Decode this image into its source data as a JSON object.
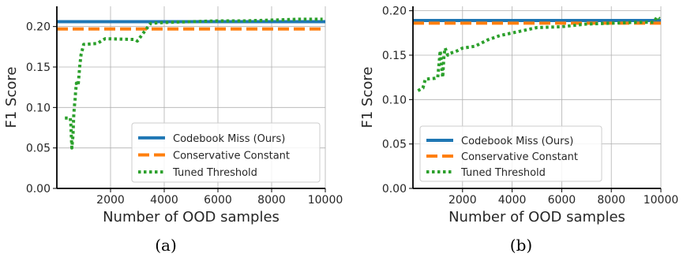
{
  "chart_data": [
    {
      "type": "line",
      "caption": "(a)",
      "xlabel": "Number of OOD samples",
      "ylabel": "F1 Score",
      "xlim": [
        0,
        10000
      ],
      "ylim": [
        0,
        0.225
      ],
      "xticks": [
        2000,
        4000,
        6000,
        8000,
        10000
      ],
      "xtick_labels": [
        "2000",
        "4000",
        "6000",
        "8000",
        "10000"
      ],
      "yticks": [
        0.0,
        0.05,
        0.1,
        0.15,
        0.2
      ],
      "ytick_labels": [
        "0.00",
        "0.05",
        "0.10",
        "0.15",
        "0.20"
      ],
      "grid": true,
      "legend_position": "lower-right",
      "series": [
        {
          "name": "Codebook Miss (Ours)",
          "style": "solid",
          "color": "#1f77b4",
          "x": [
            0,
            10000
          ],
          "y": [
            0.206,
            0.206
          ]
        },
        {
          "name": "Conservative Constant",
          "style": "dashed",
          "color": "#ff7f0e",
          "x": [
            0,
            10000
          ],
          "y": [
            0.197,
            0.197
          ]
        },
        {
          "name": "Tuned Threshold",
          "style": "dotted",
          "color": "#2ca02c",
          "x": [
            300,
            500,
            520,
            560,
            600,
            630,
            650,
            680,
            700,
            730,
            760,
            800,
            850,
            900,
            1000,
            1500,
            1800,
            2900,
            3000,
            3400,
            3500,
            4000,
            5000,
            6000,
            7000,
            8000,
            9000,
            9900
          ],
          "y": [
            0.087,
            0.087,
            0.08,
            0.05,
            0.065,
            0.09,
            0.1,
            0.11,
            0.12,
            0.13,
            0.127,
            0.13,
            0.15,
            0.165,
            0.178,
            0.179,
            0.185,
            0.184,
            0.182,
            0.2,
            0.204,
            0.205,
            0.206,
            0.207,
            0.207,
            0.208,
            0.209,
            0.209
          ]
        }
      ]
    },
    {
      "type": "line",
      "caption": "(b)",
      "xlabel": "Number of OOD samples",
      "ylabel": "F1 Score",
      "xlim": [
        0,
        10000
      ],
      "ylim": [
        0,
        0.205
      ],
      "xticks": [
        2000,
        4000,
        6000,
        8000,
        10000
      ],
      "xtick_labels": [
        "2000",
        "4000",
        "6000",
        "8000",
        "10000"
      ],
      "yticks": [
        0.0,
        0.05,
        0.1,
        0.15,
        0.2
      ],
      "ytick_labels": [
        "0.00",
        "0.05",
        "0.10",
        "0.15",
        "0.20"
      ],
      "grid": true,
      "legend_position": "lower-right",
      "series": [
        {
          "name": "Codebook Miss (Ours)",
          "style": "solid",
          "color": "#1f77b4",
          "x": [
            0,
            10000
          ],
          "y": [
            0.189,
            0.189
          ]
        },
        {
          "name": "Conservative Constant",
          "style": "dashed",
          "color": "#ff7f0e",
          "x": [
            0,
            10000
          ],
          "y": [
            0.186,
            0.186
          ]
        },
        {
          "name": "Tuned Threshold",
          "style": "dotted",
          "color": "#2ca02c",
          "x": [
            200,
            400,
            500,
            900,
            1000,
            1050,
            1100,
            1150,
            1200,
            1250,
            1300,
            1400,
            1500,
            1800,
            2000,
            2500,
            3000,
            3500,
            4000,
            4500,
            5000,
            6000,
            7000,
            8000,
            9000,
            9700,
            9850,
            9950
          ],
          "y": [
            0.11,
            0.113,
            0.123,
            0.124,
            0.125,
            0.14,
            0.155,
            0.14,
            0.125,
            0.15,
            0.158,
            0.15,
            0.152,
            0.155,
            0.158,
            0.16,
            0.167,
            0.172,
            0.175,
            0.178,
            0.181,
            0.182,
            0.185,
            0.186,
            0.187,
            0.187,
            0.193,
            0.191
          ]
        }
      ]
    }
  ]
}
